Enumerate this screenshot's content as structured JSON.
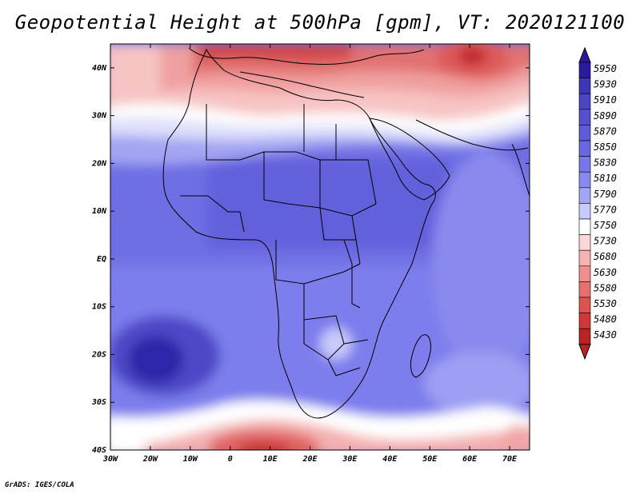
{
  "title": "Geopotential Height at 500hPa [gpm], VT: 2020121100",
  "credit": "GrADS: IGES/COLA",
  "map": {
    "lat_range": [
      -40,
      45
    ],
    "lon_range": [
      -30,
      75
    ],
    "lat_labels": [
      {
        "value": 40,
        "text": "40N"
      },
      {
        "value": 30,
        "text": "30N"
      },
      {
        "value": 20,
        "text": "20N"
      },
      {
        "value": 10,
        "text": "10N"
      },
      {
        "value": 0,
        "text": "EQ"
      },
      {
        "value": -10,
        "text": "10S"
      },
      {
        "value": -20,
        "text": "20S"
      },
      {
        "value": -30,
        "text": "30S"
      },
      {
        "value": -40,
        "text": "40S"
      }
    ],
    "lon_labels": [
      {
        "value": -30,
        "text": "30W"
      },
      {
        "value": -20,
        "text": "20W"
      },
      {
        "value": -10,
        "text": "10W"
      },
      {
        "value": 0,
        "text": "0"
      },
      {
        "value": 10,
        "text": "10E"
      },
      {
        "value": 20,
        "text": "20E"
      },
      {
        "value": 30,
        "text": "30E"
      },
      {
        "value": 40,
        "text": "40E"
      },
      {
        "value": 50,
        "text": "50E"
      },
      {
        "value": 60,
        "text": "60E"
      },
      {
        "value": 70,
        "text": "70E"
      }
    ]
  },
  "colorbar": {
    "levels": [
      "5950",
      "5930",
      "5910",
      "5890",
      "5870",
      "5850",
      "5830",
      "5810",
      "5790",
      "5770",
      "5750",
      "5730",
      "5680",
      "5630",
      "5580",
      "5530",
      "5480",
      "5430"
    ],
    "colors": [
      "#2a1a9e",
      "#3d35b5",
      "#4a45c4",
      "#5550cf",
      "#5f5cd8",
      "#6a68e0",
      "#7877e8",
      "#8a8aee",
      "#a3a5f3",
      "#c8cafa",
      "#ffffff",
      "#fbd6d6",
      "#f6b3b3",
      "#f08f8f",
      "#e86f6f",
      "#df5252",
      "#cf3838",
      "#b82323"
    ]
  }
}
